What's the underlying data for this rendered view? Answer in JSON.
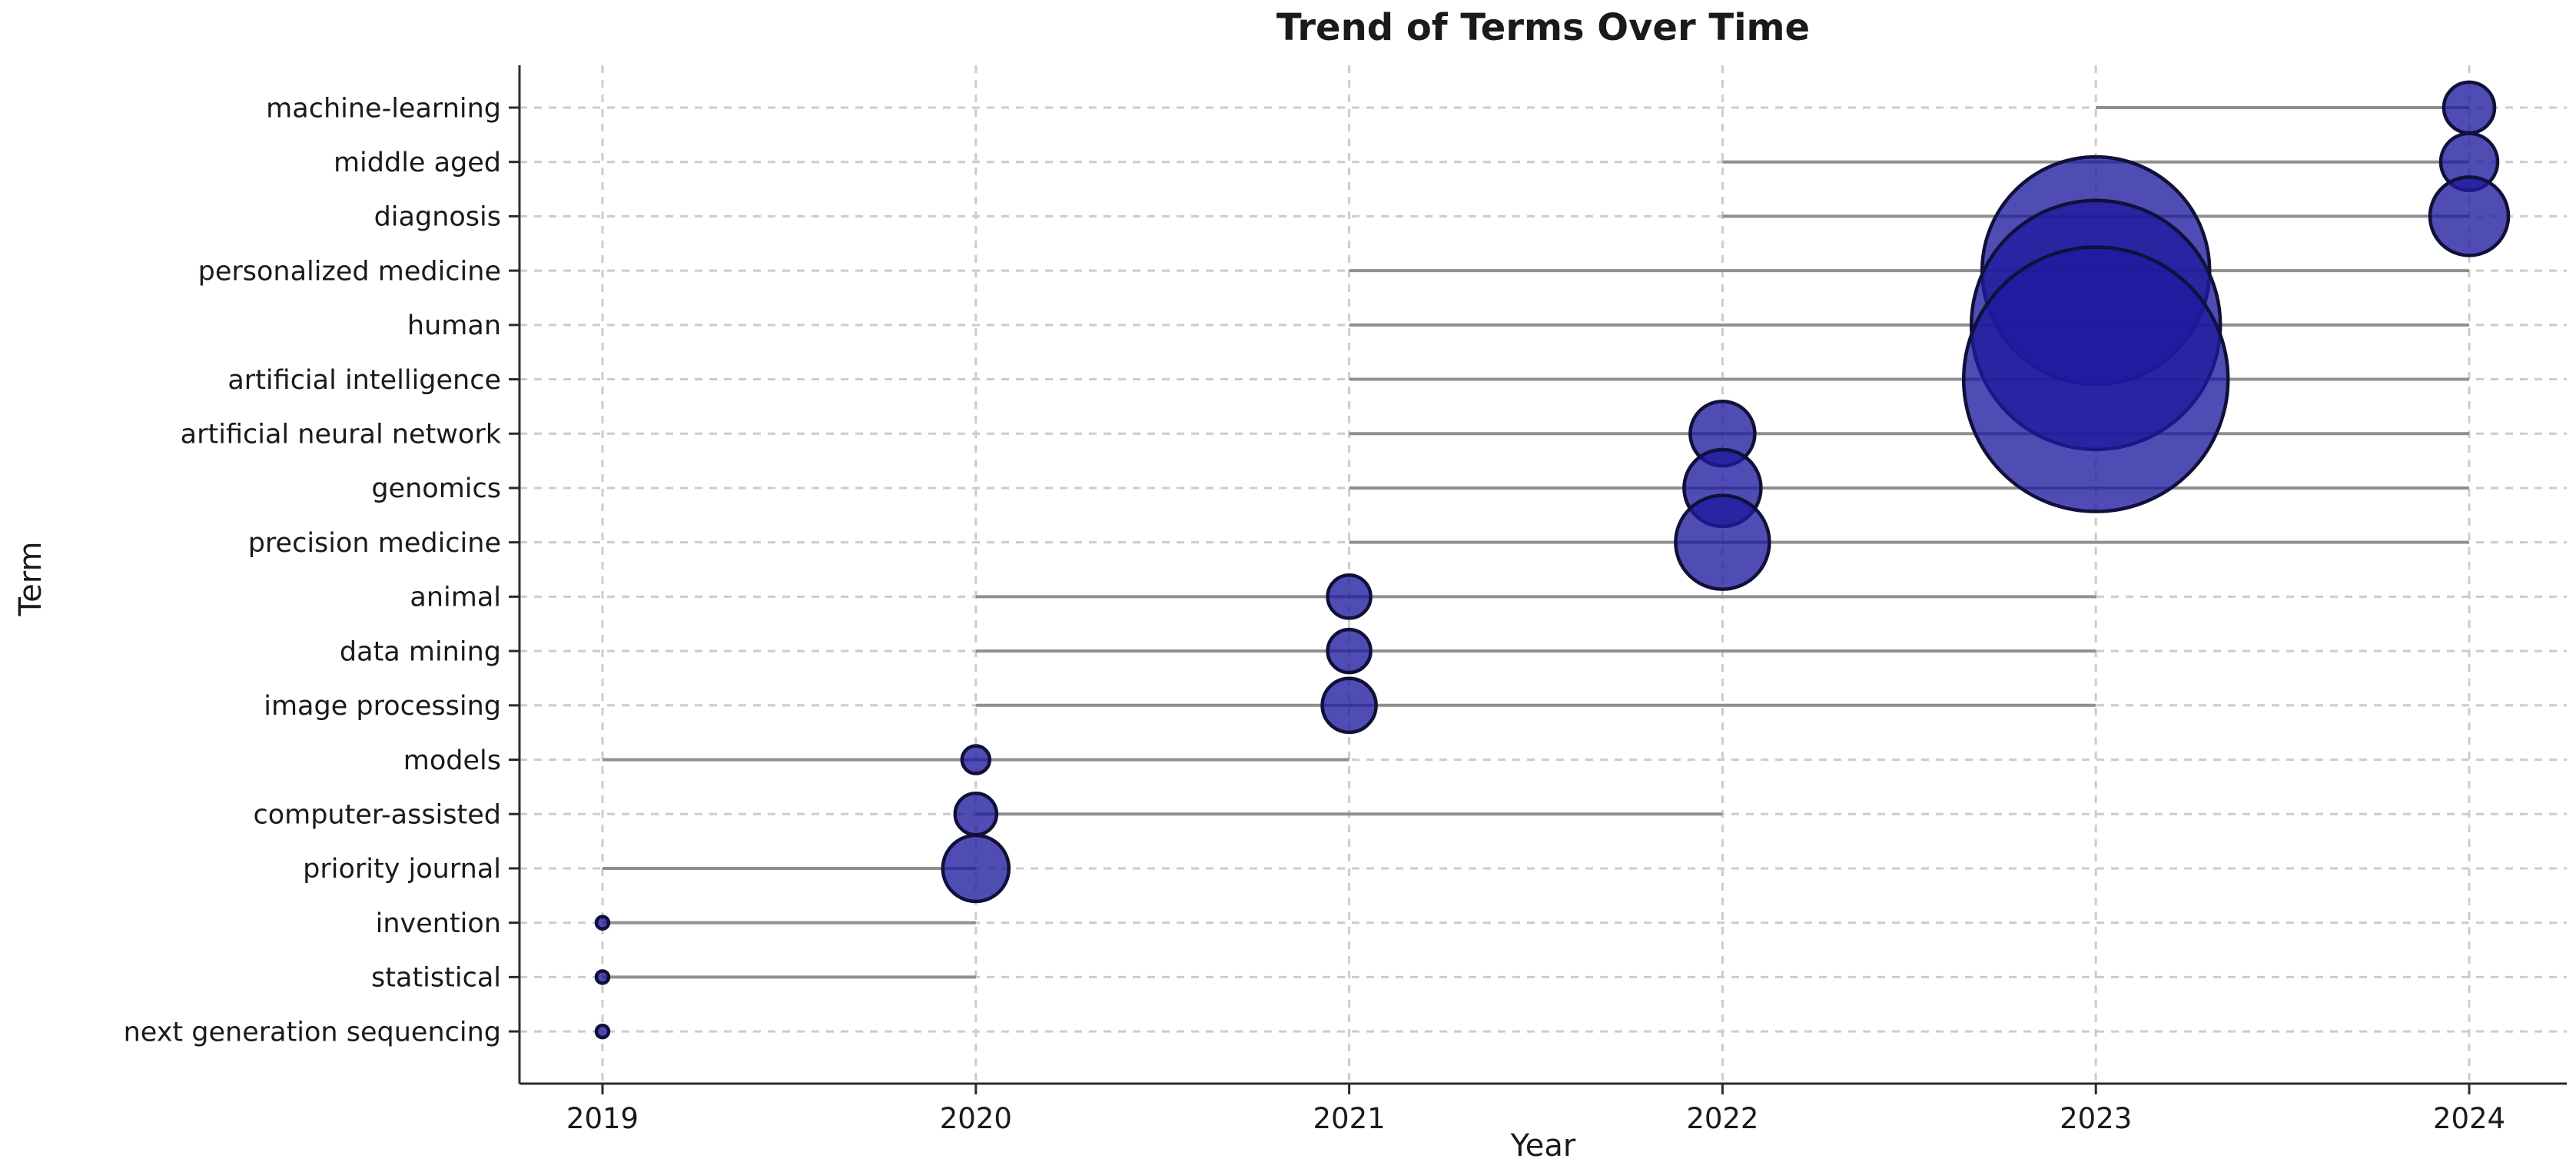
{
  "chart_data": {
    "type": "scatter",
    "subtype": "bubble-timeline",
    "title": "Trend of Terms Over Time",
    "xlabel": "Year",
    "ylabel": "Term",
    "x_tick_labels": [
      "2019",
      "2020",
      "2021",
      "2022",
      "2023",
      "2024"
    ],
    "x_range": [
      2019,
      2024
    ],
    "grid": "dashed light-gray horizontal and vertical",
    "legend": "none",
    "terms": [
      "machine-learning",
      "middle aged",
      "diagnosis",
      "personalized medicine",
      "human",
      "artificial intelligence",
      "artificial neural network",
      "genomics",
      "precision medicine",
      "animal",
      "data mining",
      "image processing",
      "models",
      "computer-assisted",
      "priority journal",
      "invention",
      "statistical",
      "next generation sequencing"
    ],
    "points": [
      {
        "term": "machine-learning",
        "year": 2024,
        "bubble_radius_px": 33
      },
      {
        "term": "middle aged",
        "year": 2024,
        "bubble_radius_px": 37
      },
      {
        "term": "diagnosis",
        "year": 2024,
        "bubble_radius_px": 51
      },
      {
        "term": "personalized medicine",
        "year": 2023,
        "bubble_radius_px": 148
      },
      {
        "term": "human",
        "year": 2023,
        "bubble_radius_px": 162
      },
      {
        "term": "artificial intelligence",
        "year": 2023,
        "bubble_radius_px": 172
      },
      {
        "term": "artificial neural network",
        "year": 2022,
        "bubble_radius_px": 42
      },
      {
        "term": "genomics",
        "year": 2022,
        "bubble_radius_px": 50
      },
      {
        "term": "precision medicine",
        "year": 2022,
        "bubble_radius_px": 61
      },
      {
        "term": "animal",
        "year": 2021,
        "bubble_radius_px": 28
      },
      {
        "term": "data mining",
        "year": 2021,
        "bubble_radius_px": 28
      },
      {
        "term": "image processing",
        "year": 2021,
        "bubble_radius_px": 35
      },
      {
        "term": "models",
        "year": 2020,
        "bubble_radius_px": 18
      },
      {
        "term": "computer-assisted",
        "year": 2020,
        "bubble_radius_px": 27
      },
      {
        "term": "priority journal",
        "year": 2020,
        "bubble_radius_px": 43
      },
      {
        "term": "invention",
        "year": 2019,
        "bubble_radius_px": 8
      },
      {
        "term": "statistical",
        "year": 2019,
        "bubble_radius_px": 8
      },
      {
        "term": "next generation sequencing",
        "year": 2019,
        "bubble_radius_px": 8
      }
    ],
    "active_ranges": [
      {
        "term": "machine-learning",
        "start": 2023,
        "end": 2024
      },
      {
        "term": "middle aged",
        "start": 2022,
        "end": 2024
      },
      {
        "term": "diagnosis",
        "start": 2022,
        "end": 2024
      },
      {
        "term": "personalized medicine",
        "start": 2021,
        "end": 2024
      },
      {
        "term": "human",
        "start": 2021,
        "end": 2024
      },
      {
        "term": "artificial intelligence",
        "start": 2021,
        "end": 2024
      },
      {
        "term": "artificial neural network",
        "start": 2021,
        "end": 2024
      },
      {
        "term": "genomics",
        "start": 2021,
        "end": 2024
      },
      {
        "term": "precision medicine",
        "start": 2021,
        "end": 2024
      },
      {
        "term": "animal",
        "start": 2020,
        "end": 2023
      },
      {
        "term": "data mining",
        "start": 2020,
        "end": 2023
      },
      {
        "term": "image processing",
        "start": 2020,
        "end": 2023
      },
      {
        "term": "models",
        "start": 2019,
        "end": 2021
      },
      {
        "term": "computer-assisted",
        "start": 2020,
        "end": 2022
      },
      {
        "term": "priority journal",
        "start": 2019,
        "end": 2020
      },
      {
        "term": "invention",
        "start": 2019,
        "end": 2020
      },
      {
        "term": "statistical",
        "start": 2019,
        "end": 2020
      },
      {
        "term": "next generation sequencing",
        "start": 2019,
        "end": 2019
      }
    ],
    "colors": {
      "bubble_fill": "#1e1a9e",
      "bubble_fill_alpha": 0.78,
      "bubble_edge": "#10103a",
      "range_line": "#8f8f8f",
      "gridline": "#cccccc",
      "spine": "#2b2b2b",
      "text": "#1a1a1a",
      "background": "#ffffff"
    }
  }
}
